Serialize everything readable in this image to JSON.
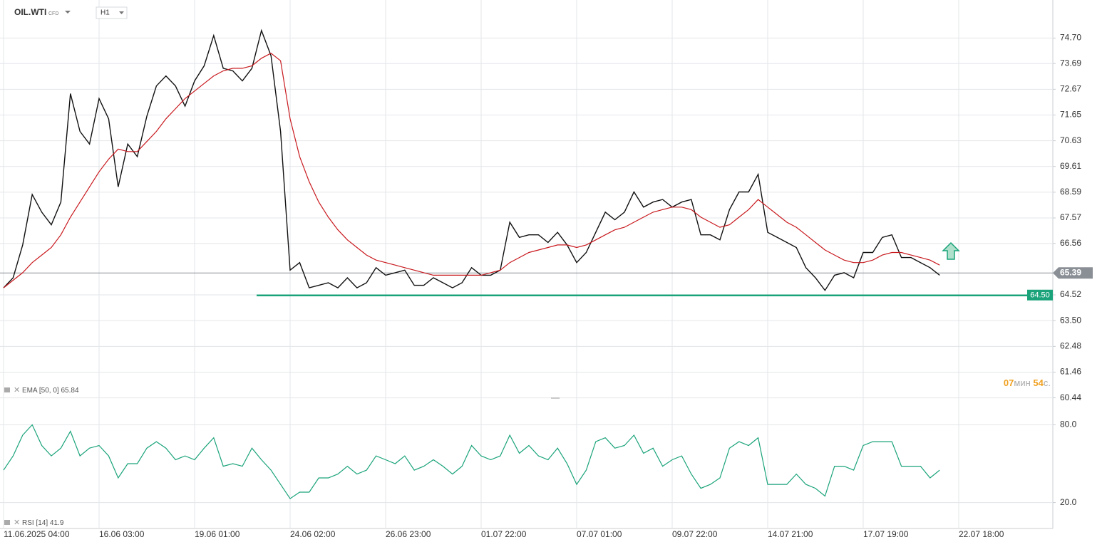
{
  "header": {
    "symbol": "OIL.WTI",
    "market": "CFD",
    "timeframe": "H1"
  },
  "countdown": {
    "minutes": "07",
    "min_unit": "мин",
    "seconds": "54",
    "sec_unit": "с."
  },
  "chart_data": [
    {
      "type": "line",
      "color_up": "#000000",
      "series": [
        {
          "color": "#111111",
          "values": [
            64.8,
            65.2,
            66.5,
            68.5,
            67.8,
            67.3,
            68.2,
            72.5,
            71.0,
            70.5,
            72.3,
            71.5,
            68.8,
            70.5,
            70.0,
            71.6,
            72.8,
            73.2,
            72.8,
            72.0,
            73.0,
            73.6,
            74.8,
            73.5,
            73.4,
            73.0,
            73.5,
            75.0,
            74.0,
            71.0,
            65.5,
            65.8,
            64.8,
            64.9,
            65.0,
            64.8,
            65.2,
            64.8,
            65.0,
            65.6,
            65.3,
            65.4,
            65.5,
            64.9,
            64.9,
            65.2,
            65.0,
            64.8,
            65.0,
            65.6,
            65.3,
            65.3,
            65.5,
            67.4,
            66.8,
            66.9,
            66.9,
            66.6,
            67.0,
            66.5,
            65.8,
            66.2,
            67.0,
            67.8,
            67.5,
            67.8,
            68.6,
            68.0,
            68.2,
            68.3,
            68.0,
            68.2,
            68.3,
            66.9,
            66.9,
            66.7,
            67.9,
            68.6,
            68.6,
            69.3,
            67.0,
            66.8,
            66.6,
            66.4,
            65.6,
            65.2,
            64.7,
            65.3,
            65.4,
            65.2,
            66.2,
            66.2,
            66.8,
            66.9,
            66.0,
            66.0,
            65.8,
            65.6,
            65.3,
            null,
            null
          ]
        },
        {
          "name": "EMA [50, 0]",
          "last_value": 65.84,
          "color": "#c8191e",
          "values": [
            64.8,
            65.1,
            65.4,
            65.8,
            66.1,
            66.4,
            66.9,
            67.6,
            68.2,
            68.8,
            69.4,
            69.9,
            70.3,
            70.2,
            70.2,
            70.6,
            71.0,
            71.5,
            71.9,
            72.3,
            72.6,
            72.9,
            73.2,
            73.4,
            73.5,
            73.5,
            73.6,
            73.9,
            74.1,
            73.8,
            71.5,
            70.0,
            69.0,
            68.2,
            67.6,
            67.1,
            66.7,
            66.4,
            66.1,
            65.9,
            65.8,
            65.7,
            65.6,
            65.5,
            65.4,
            65.3,
            65.3,
            65.3,
            65.3,
            65.3,
            65.3,
            65.4,
            65.5,
            65.8,
            66.0,
            66.2,
            66.3,
            66.4,
            66.5,
            66.5,
            66.4,
            66.5,
            66.7,
            66.9,
            67.1,
            67.2,
            67.4,
            67.6,
            67.8,
            67.9,
            68.0,
            68.0,
            67.9,
            67.6,
            67.4,
            67.2,
            67.3,
            67.6,
            67.9,
            68.3,
            68.0,
            67.7,
            67.4,
            67.2,
            66.9,
            66.6,
            66.3,
            66.1,
            65.9,
            65.8,
            65.8,
            65.9,
            66.1,
            66.2,
            66.2,
            66.1,
            66.0,
            65.9,
            65.7,
            null,
            null
          ]
        }
      ],
      "hlines": [
        {
          "value": 64.5,
          "label": "64.50",
          "color": "#1aa37a"
        },
        {
          "value": 65.39,
          "color": "#8a8f96"
        }
      ],
      "ylim": [
        60.4,
        75.7
      ],
      "yticks": [
        {
          "value": 74.7,
          "label": "74.70"
        },
        {
          "value": 73.69,
          "label": "73.69"
        },
        {
          "value": 72.67,
          "label": "72.67"
        },
        {
          "value": 71.65,
          "label": "71.65"
        },
        {
          "value": 70.63,
          "label": "70.63"
        },
        {
          "value": 69.61,
          "label": "69.61"
        },
        {
          "value": 68.59,
          "label": "68.59"
        },
        {
          "value": 67.57,
          "label": "67.57"
        },
        {
          "value": 66.56,
          "label": "66.56"
        },
        {
          "value": 64.52,
          "label": "64.52"
        },
        {
          "value": 63.5,
          "label": "63.50"
        },
        {
          "value": 62.48,
          "label": "62.48"
        },
        {
          "value": 61.46,
          "label": "61.46"
        },
        {
          "value": 60.44,
          "label": "60.44"
        }
      ],
      "grid": true
    },
    {
      "type": "line",
      "categories": [
        "11.06.2025 04:00",
        null,
        null,
        null,
        null,
        null,
        null,
        null,
        null,
        null,
        "16.06 03:00",
        null,
        null,
        null,
        null,
        null,
        null,
        null,
        null,
        null,
        "19.06 01:00",
        null,
        null,
        null,
        null,
        null,
        null,
        null,
        null,
        null,
        "24.06 02:00",
        null,
        null,
        null,
        null,
        null,
        null,
        null,
        null,
        null,
        "26.06 23:00",
        null,
        null,
        null,
        null,
        null,
        null,
        null,
        null,
        null,
        "01.07 22:00",
        null,
        null,
        null,
        null,
        null,
        null,
        null,
        null,
        null,
        "07.07 01:00",
        null,
        null,
        null,
        null,
        null,
        null,
        null,
        null,
        null,
        "09.07 22:00",
        null,
        null,
        null,
        null,
        null,
        null,
        null,
        null,
        null,
        "14.07 21:00",
        null,
        null,
        null,
        null,
        null,
        null,
        null,
        null,
        null,
        "17.07 19:00",
        null,
        null,
        null,
        null,
        null,
        null,
        null,
        null,
        null,
        "22.07 18:00"
      ],
      "series": [
        {
          "name": "RSI [14]",
          "last_value": 41.9,
          "color": "#1aa37a",
          "values": [
            45,
            56,
            72,
            80,
            64,
            56,
            62,
            75,
            56,
            62,
            64,
            56,
            39,
            50,
            50,
            62,
            67,
            62,
            53,
            56,
            53,
            62,
            70,
            48,
            50,
            48,
            62,
            53,
            45,
            34,
            23,
            28,
            28,
            39,
            39,
            42,
            48,
            42,
            45,
            56,
            53,
            50,
            56,
            45,
            48,
            53,
            48,
            42,
            48,
            64,
            56,
            53,
            56,
            72,
            58,
            64,
            56,
            53,
            62,
            50,
            34,
            45,
            67,
            70,
            62,
            64,
            72,
            58,
            62,
            48,
            53,
            56,
            42,
            31,
            34,
            39,
            62,
            67,
            64,
            70,
            34,
            34,
            34,
            42,
            34,
            31,
            25,
            48,
            48,
            45,
            64,
            67,
            67,
            67,
            48,
            48,
            48,
            39,
            45,
            null,
            null
          ]
        }
      ],
      "ylim": [
        0,
        100
      ],
      "yticks": [
        {
          "value": 80,
          "label": "80.0"
        },
        {
          "value": 20,
          "label": "20.0"
        }
      ],
      "grid": true
    }
  ]
}
